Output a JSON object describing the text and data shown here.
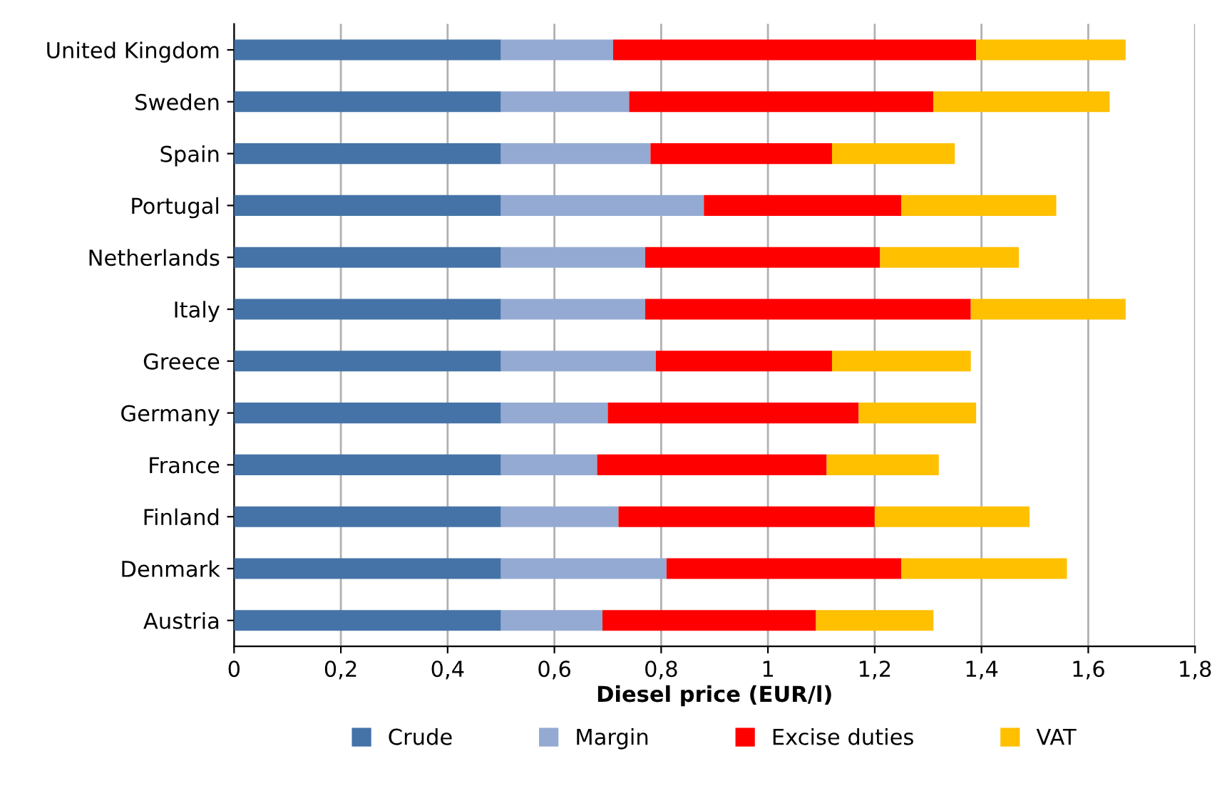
{
  "chart_data": {
    "type": "bar",
    "orientation": "horizontal",
    "stacked": true,
    "xlabel": "Diesel price (EUR/l)",
    "categories": [
      "United Kingdom",
      "Sweden",
      "Spain",
      "Portugal",
      "Netherlands",
      "Italy",
      "Greece",
      "Germany",
      "France",
      "Finland",
      "Denmark",
      "Austria"
    ],
    "series": [
      {
        "name": "Crude",
        "color": "#4573a7",
        "values": [
          0.5,
          0.5,
          0.5,
          0.5,
          0.5,
          0.5,
          0.5,
          0.5,
          0.5,
          0.5,
          0.5,
          0.5
        ]
      },
      {
        "name": "Margin",
        "color": "#94aad2",
        "values": [
          0.21,
          0.24,
          0.28,
          0.38,
          0.27,
          0.27,
          0.29,
          0.2,
          0.18,
          0.22,
          0.31,
          0.19
        ]
      },
      {
        "name": "Excise duties",
        "color": "#ff0000",
        "values": [
          0.68,
          0.57,
          0.34,
          0.37,
          0.44,
          0.61,
          0.33,
          0.47,
          0.43,
          0.48,
          0.44,
          0.4
        ]
      },
      {
        "name": "VAT",
        "color": "#ffc000",
        "values": [
          0.28,
          0.33,
          0.23,
          0.29,
          0.26,
          0.29,
          0.26,
          0.22,
          0.21,
          0.29,
          0.31,
          0.22
        ]
      }
    ],
    "xlim": [
      0,
      1.8
    ],
    "xticks": [
      0,
      {
        "value": 0.2,
        "label": "0,2"
      },
      {
        "value": 0.4,
        "label": "0,4"
      },
      {
        "value": 0.6,
        "label": "0,6"
      },
      {
        "value": 0.8,
        "label": "0,8"
      },
      1,
      {
        "value": 1.2,
        "label": "1,2"
      },
      {
        "value": 1.4,
        "label": "1,4"
      },
      {
        "value": 1.6,
        "label": "1,6"
      },
      {
        "value": 1.8,
        "label": "1,8"
      }
    ],
    "grid": "x",
    "legend": "bottom"
  }
}
